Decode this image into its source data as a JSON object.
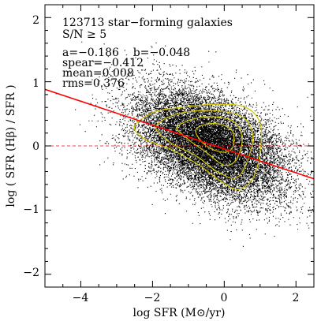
{
  "chart_data": {
    "type": "scatter",
    "title": "",
    "xlabel": "log SFR (M⊙/yr)",
    "ylabel": "log ( SFR (Hβ) / SFR )",
    "xlim": [
      -5,
      2.5
    ],
    "ylim": [
      -2.2,
      2.2
    ],
    "xticks": [
      -4,
      -2,
      0,
      2
    ],
    "xtick_labels": [
      "−4",
      "−2",
      "0",
      "2"
    ],
    "yticks": [
      -2,
      -1,
      0,
      1,
      2
    ],
    "ytick_labels": [
      "−2",
      "−1",
      "0",
      "1",
      "2"
    ],
    "grid": false,
    "legend": "none",
    "annotations": [
      "123713 star−forming galaxies",
      "S/N ≥ 5",
      "a=−0.186    b=−0.048",
      "spear=−0.412",
      "mean=0.008",
      "rms=0.376"
    ],
    "fit_line": {
      "slope": -0.186,
      "intercept": -0.048,
      "color": "#ff0000"
    },
    "reference_line": {
      "y": 0,
      "style": "dashed",
      "color": "#ff0000"
    },
    "scatter": {
      "n_points": 123713,
      "color": "#000000",
      "x_mean": -0.4,
      "x_sd": 1.05,
      "y_intercept": -0.05,
      "y_slope": -0.186,
      "y_sd": 0.376
    },
    "contours": {
      "color": "#d4c800",
      "levels": [
        {
          "name": "outer",
          "points": [
            [
              -2.5,
              0.3
            ],
            [
              -2.0,
              0.52
            ],
            [
              -1.2,
              0.6
            ],
            [
              -0.2,
              0.65
            ],
            [
              0.6,
              0.6
            ],
            [
              1.0,
              0.35
            ],
            [
              1.0,
              -0.1
            ],
            [
              0.8,
              -0.5
            ],
            [
              0.4,
              -0.68
            ],
            [
              -0.1,
              -0.55
            ],
            [
              -0.7,
              -0.3
            ],
            [
              -1.5,
              -0.05
            ],
            [
              -2.2,
              0.1
            ]
          ]
        },
        {
          "name": "second",
          "points": [
            [
              -1.9,
              0.3
            ],
            [
              -1.3,
              0.5
            ],
            [
              -0.3,
              0.55
            ],
            [
              0.5,
              0.45
            ],
            [
              0.8,
              0.15
            ],
            [
              0.6,
              -0.3
            ],
            [
              0.3,
              -0.5
            ],
            [
              -0.2,
              -0.4
            ],
            [
              -0.8,
              -0.15
            ],
            [
              -1.5,
              0.05
            ]
          ]
        },
        {
          "name": "third",
          "points": [
            [
              -1.3,
              0.3
            ],
            [
              -0.6,
              0.45
            ],
            [
              0.2,
              0.4
            ],
            [
              0.5,
              0.15
            ],
            [
              0.35,
              -0.2
            ],
            [
              0.0,
              -0.3
            ],
            [
              -0.5,
              -0.1
            ],
            [
              -1.0,
              0.1
            ]
          ]
        },
        {
          "name": "inner",
          "points": [
            [
              -0.8,
              0.25
            ],
            [
              -0.3,
              0.35
            ],
            [
              0.2,
              0.25
            ],
            [
              0.25,
              0.0
            ],
            [
              0.0,
              -0.1
            ],
            [
              -0.5,
              0.0
            ]
          ]
        }
      ]
    }
  }
}
